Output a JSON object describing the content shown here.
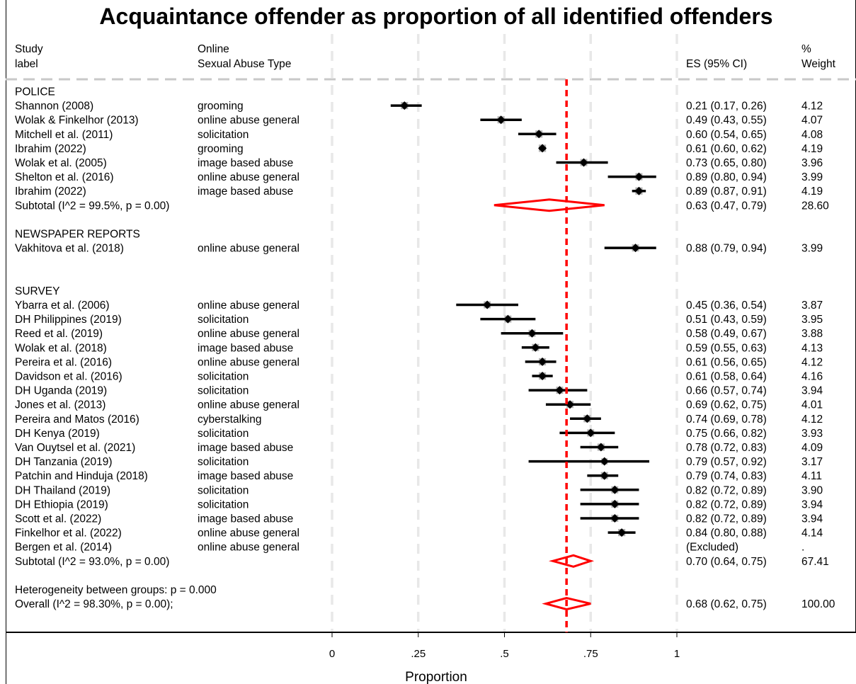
{
  "chart_data": {
    "type": "forest",
    "title": "Acquaintance offender as proportion of all identified offenders",
    "headers": {
      "study": [
        "Study",
        "label"
      ],
      "type": [
        "Online",
        "Sexual Abuse Type"
      ],
      "es": "ES (95% CI)",
      "weight": [
        "%",
        "Weight"
      ]
    },
    "xlabel": "Proportion",
    "xlim": [
      0,
      1
    ],
    "ticks": [
      {
        "value": 0,
        "label": "0"
      },
      {
        "value": 0.25,
        "label": ".25"
      },
      {
        "value": 0.5,
        "label": ".5"
      },
      {
        "value": 0.75,
        "label": ".75"
      },
      {
        "value": 1,
        "label": "1"
      }
    ],
    "overall_line": 0.68,
    "rows": [
      {
        "kind": "group",
        "label": "POLICE"
      },
      {
        "kind": "study",
        "label": "Shannon (2008)",
        "type": "grooming",
        "es": 0.21,
        "lo": 0.17,
        "hi": 0.26,
        "es_text": "0.21 (0.17, 0.26)",
        "weight": "4.12"
      },
      {
        "kind": "study",
        "label": "Wolak & Finkelhor (2013)",
        "type": "online abuse general",
        "es": 0.49,
        "lo": 0.43,
        "hi": 0.55,
        "es_text": "0.49 (0.43, 0.55)",
        "weight": "4.07"
      },
      {
        "kind": "study",
        "label": "Mitchell et al. (2011)",
        "type": "solicitation",
        "es": 0.6,
        "lo": 0.54,
        "hi": 0.65,
        "es_text": "0.60 (0.54, 0.65)",
        "weight": "4.08"
      },
      {
        "kind": "study",
        "label": "Ibrahim (2022)",
        "type": "grooming",
        "es": 0.61,
        "lo": 0.6,
        "hi": 0.62,
        "es_text": "0.61 (0.60, 0.62)",
        "weight": "4.19"
      },
      {
        "kind": "study",
        "label": "Wolak et al. (2005)",
        "type": "image based abuse",
        "es": 0.73,
        "lo": 0.65,
        "hi": 0.8,
        "es_text": "0.73 (0.65, 0.80)",
        "weight": "3.96"
      },
      {
        "kind": "study",
        "label": "Shelton et al. (2016)",
        "type": "online abuse general",
        "es": 0.89,
        "lo": 0.8,
        "hi": 0.94,
        "es_text": "0.89 (0.80, 0.94)",
        "weight": "3.99"
      },
      {
        "kind": "study",
        "label": "Ibrahim (2022)",
        "type": "image based abuse",
        "es": 0.89,
        "lo": 0.87,
        "hi": 0.91,
        "es_text": "0.89 (0.87, 0.91)",
        "weight": "4.19"
      },
      {
        "kind": "subtotal",
        "label": "Subtotal  (I^2 = 99.5%, p = 0.00)",
        "es": 0.63,
        "lo": 0.47,
        "hi": 0.79,
        "es_text": "0.63 (0.47, 0.79)",
        "weight": "28.60"
      },
      {
        "kind": "blank"
      },
      {
        "kind": "group",
        "label": "NEWSPAPER REPORTS"
      },
      {
        "kind": "study",
        "label": "Vakhitova et al. (2018)",
        "type": "online abuse general",
        "es": 0.88,
        "lo": 0.79,
        "hi": 0.94,
        "es_text": "0.88 (0.79, 0.94)",
        "weight": "3.99"
      },
      {
        "kind": "blank"
      },
      {
        "kind": "blank"
      },
      {
        "kind": "group",
        "label": "SURVEY"
      },
      {
        "kind": "study",
        "label": "Ybarra et al. (2006)",
        "type": "online abuse general",
        "es": 0.45,
        "lo": 0.36,
        "hi": 0.54,
        "es_text": "0.45 (0.36, 0.54)",
        "weight": "3.87"
      },
      {
        "kind": "study",
        "label": "DH Philippines (2019)",
        "type": "solicitation",
        "es": 0.51,
        "lo": 0.43,
        "hi": 0.59,
        "es_text": "0.51 (0.43, 0.59)",
        "weight": "3.95"
      },
      {
        "kind": "study",
        "label": "Reed et al. (2019)",
        "type": "online abuse general",
        "es": 0.58,
        "lo": 0.49,
        "hi": 0.67,
        "es_text": "0.58 (0.49, 0.67)",
        "weight": "3.88"
      },
      {
        "kind": "study",
        "label": "Wolak et al. (2018)",
        "type": "image based abuse",
        "es": 0.59,
        "lo": 0.55,
        "hi": 0.63,
        "es_text": "0.59 (0.55, 0.63)",
        "weight": "4.13"
      },
      {
        "kind": "study",
        "label": "Pereira et al. (2016)",
        "type": "online abuse general",
        "es": 0.61,
        "lo": 0.56,
        "hi": 0.65,
        "es_text": "0.61 (0.56, 0.65)",
        "weight": "4.12"
      },
      {
        "kind": "study",
        "label": "Davidson et al. (2016)",
        "type": "solicitation",
        "es": 0.61,
        "lo": 0.58,
        "hi": 0.64,
        "es_text": "0.61 (0.58, 0.64)",
        "weight": "4.16"
      },
      {
        "kind": "study",
        "label": "DH Uganda (2019)",
        "type": "solicitation",
        "es": 0.66,
        "lo": 0.57,
        "hi": 0.74,
        "es_text": "0.66 (0.57, 0.74)",
        "weight": "3.94"
      },
      {
        "kind": "study",
        "label": "Jones et al. (2013)",
        "type": "online abuse general",
        "es": 0.69,
        "lo": 0.62,
        "hi": 0.75,
        "es_text": "0.69 (0.62, 0.75)",
        "weight": "4.01"
      },
      {
        "kind": "study",
        "label": "Pereira and Matos (2016)",
        "type": "cyberstalking",
        "es": 0.74,
        "lo": 0.69,
        "hi": 0.78,
        "es_text": "0.74 (0.69, 0.78)",
        "weight": "4.12"
      },
      {
        "kind": "study",
        "label": "DH Kenya (2019)",
        "type": "solicitation",
        "es": 0.75,
        "lo": 0.66,
        "hi": 0.82,
        "es_text": "0.75 (0.66, 0.82)",
        "weight": "3.93"
      },
      {
        "kind": "study",
        "label": "Van Ouytsel et al. (2021)",
        "type": "image based abuse",
        "es": 0.78,
        "lo": 0.72,
        "hi": 0.83,
        "es_text": "0.78 (0.72, 0.83)",
        "weight": "4.09"
      },
      {
        "kind": "study",
        "label": "DH Tanzania (2019)",
        "type": "solicitation",
        "es": 0.79,
        "lo": 0.57,
        "hi": 0.92,
        "es_text": "0.79 (0.57, 0.92)",
        "weight": "3.17"
      },
      {
        "kind": "study",
        "label": "Patchin and Hinduja (2018)",
        "type": "image based abuse",
        "es": 0.79,
        "lo": 0.74,
        "hi": 0.83,
        "es_text": "0.79 (0.74, 0.83)",
        "weight": "4.11"
      },
      {
        "kind": "study",
        "label": "DH Thailand (2019)",
        "type": "solicitation",
        "es": 0.82,
        "lo": 0.72,
        "hi": 0.89,
        "es_text": "0.82 (0.72, 0.89)",
        "weight": "3.90"
      },
      {
        "kind": "study",
        "label": "DH Ethiopia (2019)",
        "type": "solicitation",
        "es": 0.82,
        "lo": 0.72,
        "hi": 0.89,
        "es_text": "0.82 (0.72, 0.89)",
        "weight": "3.94"
      },
      {
        "kind": "study",
        "label": "Scott et al. (2022)",
        "type": "image based abuse",
        "es": 0.82,
        "lo": 0.72,
        "hi": 0.89,
        "es_text": "0.82 (0.72, 0.89)",
        "weight": "3.94"
      },
      {
        "kind": "study",
        "label": "Finkelhor et al. (2022)",
        "type": "online abuse general",
        "es": 0.84,
        "lo": 0.8,
        "hi": 0.88,
        "es_text": "0.84 (0.80, 0.88)",
        "weight": "4.14"
      },
      {
        "kind": "study",
        "label": "Bergen et al. (2014)",
        "type": "online abuse general",
        "es": null,
        "lo": null,
        "hi": null,
        "es_text": "(Excluded)",
        "weight": "."
      },
      {
        "kind": "subtotal",
        "label": "Subtotal  (I^2 = 93.0%, p = 0.00)",
        "es": 0.7,
        "lo": 0.64,
        "hi": 0.75,
        "es_text": "0.70 (0.64, 0.75)",
        "weight": "67.41"
      },
      {
        "kind": "blank"
      },
      {
        "kind": "note",
        "label": "Heterogeneity between groups: p = 0.000"
      },
      {
        "kind": "overall",
        "label": "Overall  (I^2 = 98.30%, p = 0.00);",
        "es": 0.68,
        "lo": 0.62,
        "hi": 0.75,
        "es_text": "0.68 (0.62, 0.75)",
        "weight": "100.00"
      }
    ],
    "colors": {
      "summary": "#ff0000",
      "reference_line": "#ff0000",
      "grid": "#e8e8e8",
      "weight_box": "#b3b3b3",
      "marker": "#000000"
    }
  }
}
